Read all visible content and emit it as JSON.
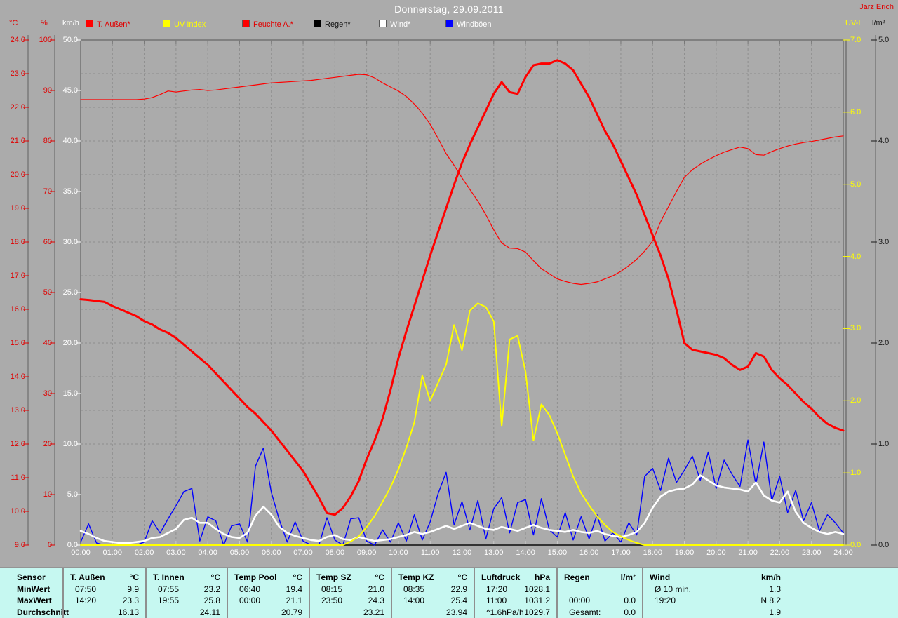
{
  "header": {
    "title": "Donnerstag, 29.09.2011",
    "owner": "Jarz Erich"
  },
  "colors": {
    "background": "#ababab",
    "grid": "#8e8e8e",
    "frame": "#767676",
    "red": "#ff0000",
    "yellow": "#ffff00",
    "white": "#ffffff",
    "blue": "#0000ff",
    "black": "#000000",
    "table_bg": "#c6f8f1",
    "red_text": "#e00000"
  },
  "chart_data": {
    "type": "line",
    "title": "Donnerstag, 29.09.2011",
    "x_unit": "hours",
    "x_range": [
      0,
      24
    ],
    "grid": true,
    "x_ticks": [
      "00:00",
      "01:00",
      "02:00",
      "03:00",
      "04:00",
      "05:00",
      "06:00",
      "07:00",
      "08:00",
      "09:00",
      "10:00",
      "11:00",
      "12:00",
      "13:00",
      "14:00",
      "15:00",
      "16:00",
      "17:00",
      "18:00",
      "19:00",
      "20:00",
      "21:00",
      "22:00",
      "23:00",
      "24:00"
    ],
    "axes": {
      "left": [
        {
          "id": "temp",
          "label": "°C",
          "color": "#e00000",
          "range": [
            9,
            24
          ],
          "ticks": [
            "24.0",
            "23.0",
            "22.0",
            "21.0",
            "20.0",
            "19.0",
            "18.0",
            "17.0",
            "16.0",
            "15.0",
            "14.0",
            "13.0",
            "12.0",
            "11.0",
            "10.0",
            "9.0"
          ]
        },
        {
          "id": "hum",
          "label": "%",
          "color": "#e00000",
          "range": [
            0,
            100
          ],
          "ticks": [
            "100",
            "90",
            "80",
            "70",
            "60",
            "50",
            "40",
            "30",
            "20",
            "10",
            "0"
          ]
        },
        {
          "id": "wind",
          "label": "km/h",
          "color": "#ffffff",
          "range": [
            0,
            50
          ],
          "ticks": [
            "50.0",
            "45.0",
            "40.0",
            "35.0",
            "30.0",
            "25.0",
            "20.0",
            "15.0",
            "10.0",
            "5.0",
            "0.0"
          ]
        }
      ],
      "right": [
        {
          "id": "uv",
          "label": "UV-I",
          "color": "#ffff00",
          "range": [
            0,
            7
          ],
          "ticks": [
            "7.0",
            "6.0",
            "5.0",
            "4.0",
            "3.0",
            "2.0",
            "1.0",
            "0.0"
          ]
        },
        {
          "id": "rain",
          "label": "l/m²",
          "color": "#1a1a1a",
          "range": [
            0,
            5
          ],
          "ticks": [
            "5.0",
            "4.0",
            "3.0",
            "2.0",
            "1.0",
            "0.0"
          ]
        }
      ]
    },
    "legend": [
      {
        "label": "T. Außen*",
        "swatch": "#ff0000",
        "text_color": "#e00000"
      },
      {
        "label": "UV Index",
        "swatch": "#ffff00",
        "text_color": "#ffff00"
      },
      {
        "label": "Feuchte A.*",
        "swatch": "#ff0000",
        "text_color": "#e00000"
      },
      {
        "label": "Regen*",
        "swatch": "#000000",
        "text_color": "#111111"
      },
      {
        "label": "Wind*",
        "swatch": "#ffffff",
        "text_color": "#ffffff"
      },
      {
        "label": "Windböen",
        "swatch": "#0000ff",
        "text_color": "#ffffff"
      }
    ],
    "series": [
      {
        "name": "Regen",
        "axis": "rain",
        "color": "#000000",
        "width": 1.2,
        "dt": 24,
        "values": [
          0,
          0
        ]
      },
      {
        "name": "Windböen",
        "axis": "wind",
        "color": "#0000ff",
        "width": 1.4,
        "dt": 0.25,
        "values": [
          0.3,
          2.1,
          0.2,
          0,
          0,
          0,
          0,
          0,
          0.3,
          2.4,
          1.2,
          2.6,
          3.9,
          5.3,
          5.6,
          0.4,
          2.8,
          2.4,
          0,
          1.9,
          2.1,
          0.3,
          7.8,
          9.6,
          5.2,
          2.5,
          0.3,
          2.3,
          0.4,
          0,
          0,
          2.7,
          0.5,
          0,
          2.6,
          2.7,
          0.4,
          0,
          1.5,
          0.3,
          2.2,
          0.4,
          3.0,
          0.5,
          2.3,
          5.1,
          7.2,
          2.0,
          4.3,
          1.5,
          4.4,
          0.6,
          3.6,
          4.7,
          1.2,
          4.2,
          4.5,
          1.0,
          4.6,
          1.5,
          0.8,
          3.2,
          0.5,
          2.8,
          0.6,
          3.0,
          0.4,
          1.2,
          0.3,
          2.2,
          1.0,
          6.8,
          7.6,
          5.4,
          8.6,
          6.2,
          7.4,
          8.8,
          6.4,
          9.2,
          5.6,
          8.4,
          7.0,
          5.8,
          10.4,
          6.0,
          10.2,
          4.4,
          6.8,
          3.2,
          5.4,
          2.4,
          4.2,
          1.4,
          3.0,
          2.2,
          1.2
        ]
      },
      {
        "name": "Wind",
        "axis": "wind",
        "color": "#ffffff",
        "width": 2.6,
        "dt": 0.25,
        "values": [
          1.4,
          1.1,
          0.7,
          0.4,
          0.3,
          0.2,
          0.2,
          0.3,
          0.4,
          0.7,
          0.8,
          1.2,
          1.6,
          2.5,
          2.7,
          2.2,
          2.2,
          1.6,
          1.1,
          0.8,
          0.7,
          1.2,
          2.9,
          3.8,
          3.0,
          1.8,
          1.2,
          0.9,
          0.7,
          0.5,
          0.4,
          0.8,
          1.0,
          0.6,
          0.5,
          0.8,
          0.6,
          0.4,
          0.5,
          0.6,
          0.8,
          1.0,
          1.3,
          1.1,
          1.3,
          1.6,
          1.9,
          1.6,
          1.9,
          2.2,
          1.9,
          1.6,
          1.5,
          1.8,
          1.6,
          1.4,
          1.7,
          2.0,
          1.7,
          1.5,
          1.4,
          1.3,
          1.5,
          1.3,
          1.2,
          1.4,
          1.1,
          0.9,
          0.8,
          1.0,
          1.3,
          2.2,
          3.7,
          4.8,
          5.3,
          5.5,
          5.6,
          6.0,
          6.9,
          6.4,
          5.9,
          5.7,
          5.6,
          5.5,
          5.3,
          6.2,
          4.9,
          4.4,
          4.2,
          5.3,
          3.3,
          2.2,
          1.7,
          1.3,
          1.1,
          1.3,
          1.1
        ]
      },
      {
        "name": "UV Index",
        "axis": "uv",
        "color": "#ffff00",
        "width": 2,
        "dt": 0.25,
        "values": [
          0,
          0,
          0,
          0,
          0,
          0,
          0,
          0,
          0,
          0,
          0,
          0,
          0,
          0,
          0,
          0,
          0,
          0,
          0,
          0,
          0,
          0,
          0,
          0,
          0,
          0,
          0,
          0,
          0,
          0,
          0,
          0,
          0,
          0,
          0.05,
          0.12,
          0.25,
          0.4,
          0.6,
          0.8,
          1.05,
          1.35,
          1.7,
          2.35,
          2.0,
          2.25,
          2.5,
          3.05,
          2.7,
          3.25,
          3.35,
          3.3,
          3.1,
          1.65,
          2.85,
          2.9,
          2.4,
          1.45,
          1.95,
          1.8,
          1.55,
          1.25,
          0.95,
          0.72,
          0.55,
          0.4,
          0.28,
          0.18,
          0.12,
          0.07,
          0.03,
          0,
          0,
          0,
          0,
          0,
          0,
          0,
          0,
          0,
          0,
          0,
          0,
          0,
          0,
          0,
          0,
          0,
          0,
          0,
          0,
          0,
          0,
          0,
          0,
          0,
          0
        ]
      },
      {
        "name": "Feuchte A.",
        "axis": "hum",
        "color": "#ff0000",
        "width": 1.2,
        "dt": 0.25,
        "values": [
          88.2,
          88.2,
          88.2,
          88.2,
          88.2,
          88.2,
          88.2,
          88.2,
          88.3,
          88.6,
          89.2,
          89.9,
          89.7,
          89.9,
          90.1,
          90.2,
          90.0,
          90.1,
          90.3,
          90.5,
          90.7,
          90.9,
          91.1,
          91.3,
          91.5,
          91.6,
          91.7,
          91.8,
          91.9,
          92.0,
          92.2,
          92.4,
          92.6,
          92.8,
          93.0,
          93.2,
          93.1,
          92.5,
          91.5,
          90.7,
          89.9,
          88.8,
          87.3,
          85.5,
          83.3,
          80.5,
          77.5,
          75.2,
          72.7,
          70.4,
          68.1,
          65.4,
          62.4,
          59.8,
          58.8,
          58.7,
          58.0,
          56.3,
          54.7,
          53.7,
          52.7,
          52.2,
          51.8,
          51.6,
          51.8,
          52.1,
          52.7,
          53.3,
          54.2,
          55.3,
          56.6,
          58.2,
          60.2,
          64.0,
          67.0,
          70.0,
          72.8,
          74.3,
          75.4,
          76.3,
          77.1,
          77.8,
          78.3,
          78.8,
          78.5,
          77.3,
          77.2,
          77.9,
          78.5,
          79.0,
          79.4,
          79.7,
          79.9,
          80.2,
          80.5,
          80.8,
          81.0
        ]
      },
      {
        "name": "T. Außen",
        "axis": "temp",
        "color": "#ff0000",
        "width": 3,
        "dt": 0.25,
        "values": [
          16.3,
          16.28,
          16.25,
          16.22,
          16.1,
          16.0,
          15.9,
          15.8,
          15.65,
          15.55,
          15.4,
          15.3,
          15.15,
          14.95,
          14.75,
          14.55,
          14.35,
          14.1,
          13.85,
          13.6,
          13.35,
          13.1,
          12.9,
          12.65,
          12.4,
          12.1,
          11.8,
          11.5,
          11.2,
          10.8,
          10.4,
          9.95,
          9.9,
          10.1,
          10.45,
          10.9,
          11.55,
          12.1,
          12.75,
          13.6,
          14.55,
          15.35,
          16.1,
          16.85,
          17.6,
          18.3,
          19.0,
          19.7,
          20.35,
          20.9,
          21.4,
          21.9,
          22.4,
          22.75,
          22.45,
          22.4,
          22.9,
          23.25,
          23.3,
          23.3,
          23.4,
          23.3,
          23.1,
          22.7,
          22.3,
          21.8,
          21.3,
          20.9,
          20.4,
          19.9,
          19.4,
          18.8,
          18.2,
          17.6,
          16.9,
          16.0,
          15.0,
          14.8,
          14.75,
          14.7,
          14.65,
          14.55,
          14.35,
          14.2,
          14.3,
          14.7,
          14.6,
          14.2,
          13.95,
          13.75,
          13.5,
          13.25,
          13.05,
          12.8,
          12.6,
          12.48,
          12.4
        ]
      }
    ]
  },
  "table": {
    "row_labels": [
      "Sensor",
      "MinWert",
      "MaxWert",
      "Durchschnitt"
    ],
    "columns": [
      {
        "name": "T. Außen",
        "unit": "°C",
        "min_time": "07:50",
        "min_val": "9.9",
        "max_time": "14:20",
        "max_val": "23.3",
        "avg_label": "",
        "avg_val": "16.13"
      },
      {
        "name": "T. Innen",
        "unit": "°C",
        "min_time": "07:55",
        "min_val": "23.2",
        "max_time": "19:55",
        "max_val": "25.8",
        "avg_label": "",
        "avg_val": "24.11"
      },
      {
        "name": "Temp Pool",
        "unit": "°C",
        "min_time": "06:40",
        "min_val": "19.4",
        "max_time": "00:00",
        "max_val": "21.1",
        "avg_label": "",
        "avg_val": "20.79"
      },
      {
        "name": "Temp SZ",
        "unit": "°C",
        "min_time": "08:15",
        "min_val": "21.0",
        "max_time": "23:50",
        "max_val": "24.3",
        "avg_label": "",
        "avg_val": "23.21"
      },
      {
        "name": "Temp KZ",
        "unit": "°C",
        "min_time": "08:35",
        "min_val": "22.9",
        "max_time": "14:00",
        "max_val": "25.4",
        "avg_label": "",
        "avg_val": "23.94"
      },
      {
        "name": "Luftdruck",
        "unit": "hPa",
        "min_time": "17:20",
        "min_val": "1028.1",
        "max_time": "11:00",
        "max_val": "1031.2",
        "avg_label": "^1.6hPa/h",
        "avg_val": "1029.7"
      },
      {
        "name": "Regen",
        "unit": "l/m²",
        "min_time": "",
        "min_val": "",
        "max_time": "00:00",
        "max_val": "0.0",
        "avg_label": "Gesamt:",
        "avg_val": "0.0"
      },
      {
        "name": "Wind",
        "unit": "km/h",
        "min_time": "Ø 10 min.",
        "min_val": "1.3",
        "max_time": "19:20",
        "max_val": "N 8.2",
        "avg_label": "",
        "avg_val": "1.9"
      }
    ]
  }
}
